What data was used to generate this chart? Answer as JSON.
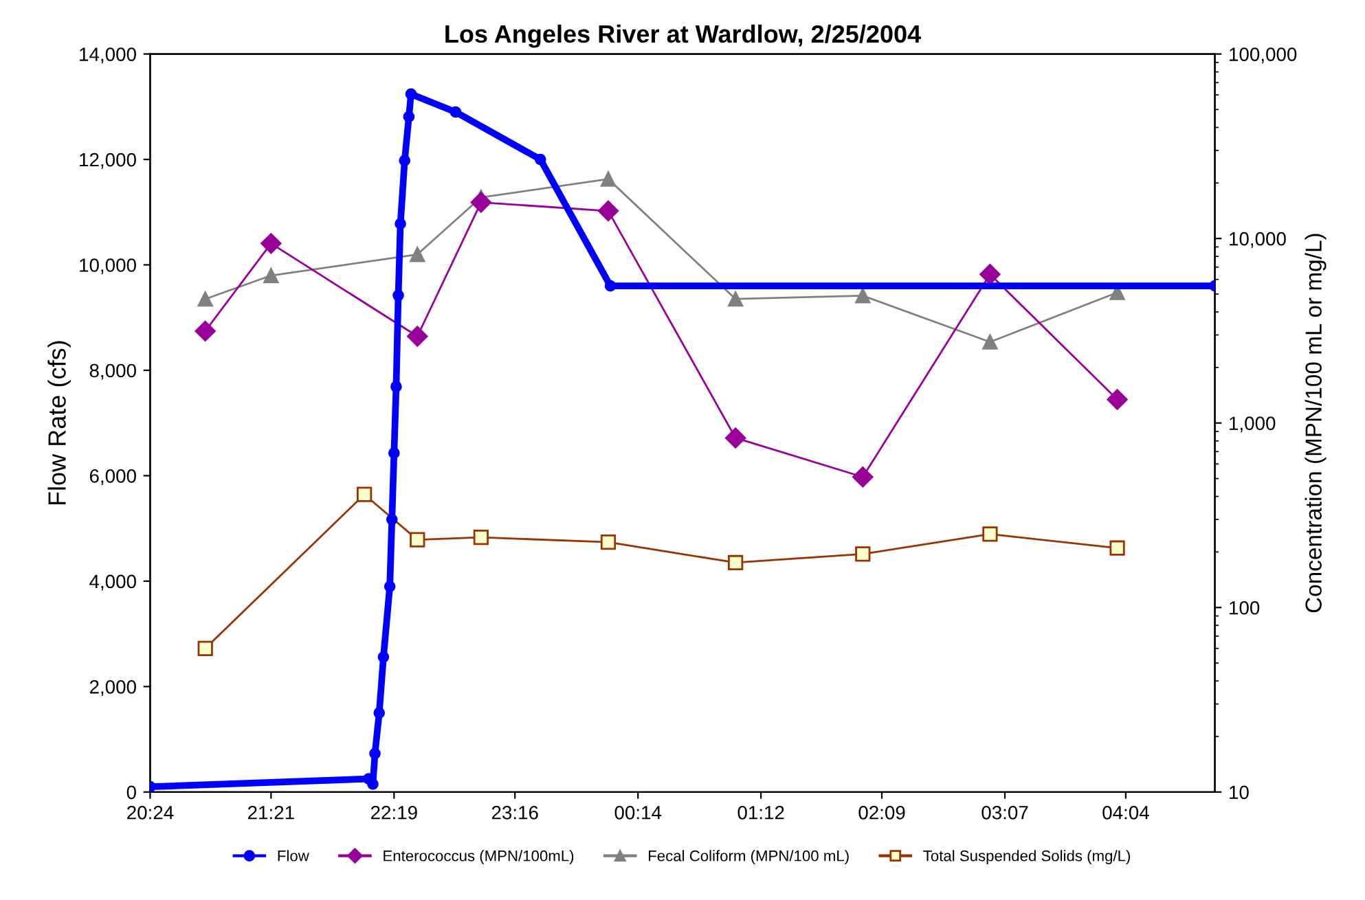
{
  "chart_data": {
    "type": "line",
    "title": "Los Angeles River at Wardlow, 2/25/2004",
    "ylabel": "Flow Rate (cfs)",
    "y2label": "Concentration (MPN/100 mL or mg/L)",
    "xlim": [
      "2004-02-25T20:24",
      "2004-02-26T04:46"
    ],
    "xticks": [
      {
        "value": "2004-02-25T20:24",
        "label": "20:24"
      },
      {
        "value": "2004-02-25T21:21",
        "label": "21:21"
      },
      {
        "value": "2004-02-25T22:19",
        "label": "22:19"
      },
      {
        "value": "2004-02-25T23:16",
        "label": "23:16"
      },
      {
        "value": "2004-02-26T00:14",
        "label": "00:14"
      },
      {
        "value": "2004-02-26T01:12",
        "label": "01:12"
      },
      {
        "value": "2004-02-26T02:09",
        "label": "02:09"
      },
      {
        "value": "2004-02-26T03:07",
        "label": "03:07"
      },
      {
        "value": "2004-02-26T04:04",
        "label": "04:04"
      }
    ],
    "ylim": [
      0,
      14000
    ],
    "yticks": [
      {
        "value": 0,
        "label": "0"
      },
      {
        "value": 2000,
        "label": "2,000"
      },
      {
        "value": 4000,
        "label": "4,000"
      },
      {
        "value": 6000,
        "label": "6,000"
      },
      {
        "value": 8000,
        "label": "8,000"
      },
      {
        "value": 10000,
        "label": "10,000"
      },
      {
        "value": 12000,
        "label": "12,000"
      },
      {
        "value": 14000,
        "label": "14,000"
      }
    ],
    "y2lim": [
      10,
      100000
    ],
    "y2ticks": [
      {
        "value": 10,
        "label": "10"
      },
      {
        "value": 100,
        "label": "100"
      },
      {
        "value": 1000,
        "label": "1,000"
      },
      {
        "value": 10000,
        "label": "10,000"
      },
      {
        "value": 100000,
        "label": "100,000"
      }
    ],
    "log": "y2",
    "grid": false,
    "legend": "bottom",
    "series": [
      {
        "name": "Flow",
        "color": "#0000ff",
        "marker": "circle",
        "x": [
          "2004-02-25T20:24",
          "2004-02-25T22:07",
          "2004-02-25T22:09",
          "2004-02-25T22:10",
          "2004-02-25T22:12",
          "2004-02-25T22:14",
          "2004-02-25T22:17",
          "2004-02-25T22:18",
          "2004-02-25T22:19",
          "2004-02-25T22:20",
          "2004-02-25T22:21",
          "2004-02-25T22:22",
          "2004-02-25T22:24",
          "2004-02-25T22:26",
          "2004-02-25T22:27",
          "2004-02-25T22:48",
          "2004-02-25T23:28",
          "2004-02-26T00:01",
          "2004-02-26T04:46"
        ],
        "values": [
          100,
          250,
          150,
          730,
          1500,
          2560,
          3900,
          5170,
          6430,
          7690,
          9420,
          10780,
          11980,
          12810,
          13240,
          12900,
          12000,
          9600,
          9600
        ]
      },
      {
        "name": "Enterococcus (MPN/100mL)",
        "color": "#990099",
        "marker": "diamond",
        "axis": "y2",
        "x": [
          "2004-02-25T20:50",
          "2004-02-25T21:21",
          "2004-02-25T22:30",
          "2004-02-25T23:00",
          "2004-02-26T00:00",
          "2004-02-26T01:00",
          "2004-02-26T02:00",
          "2004-02-26T03:00",
          "2004-02-26T04:00"
        ],
        "values": [
          3150,
          9400,
          2950,
          15700,
          14100,
          830,
          510,
          6400,
          1340
        ]
      },
      {
        "name": "Fecal Coliform (MPN/100 mL)",
        "color": "#808080",
        "marker": "triangle",
        "axis": "y2",
        "x": [
          "2004-02-25T20:50",
          "2004-02-25T21:21",
          "2004-02-25T22:30",
          "2004-02-25T23:00",
          "2004-02-26T00:00",
          "2004-02-26T01:00",
          "2004-02-26T02:00",
          "2004-02-26T03:00",
          "2004-02-26T04:00"
        ],
        "values": [
          4700,
          6300,
          8200,
          16700,
          21000,
          4700,
          4900,
          2750,
          5100
        ]
      },
      {
        "name": "Total Suspended Solids (mg/L)",
        "color": "#993300",
        "marker": "square",
        "axis": "y2",
        "x": [
          "2004-02-25T20:50",
          "2004-02-25T22:05",
          "2004-02-25T22:30",
          "2004-02-25T23:00",
          "2004-02-26T00:00",
          "2004-02-26T01:00",
          "2004-02-26T02:00",
          "2004-02-26T03:00",
          "2004-02-26T04:00"
        ],
        "values": [
          60,
          410,
          233,
          240,
          226,
          175,
          195,
          250,
          210
        ]
      }
    ]
  }
}
